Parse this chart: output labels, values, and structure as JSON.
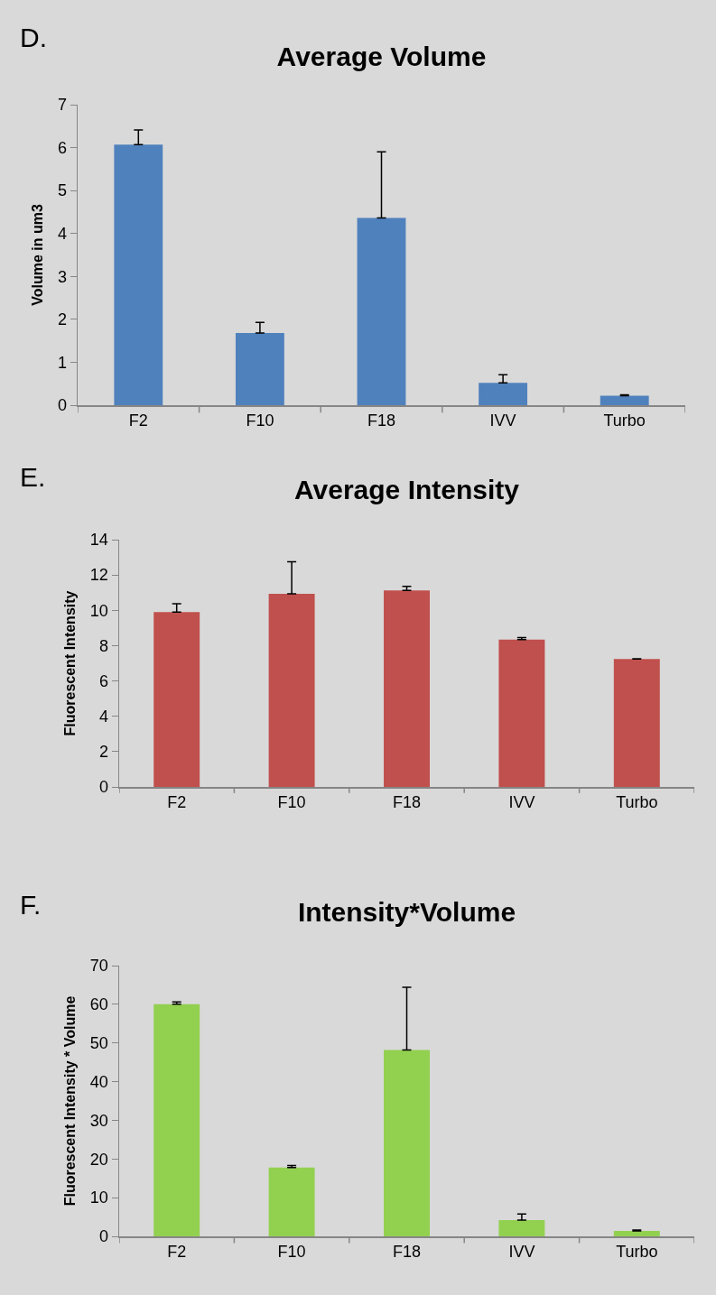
{
  "chart_data": [
    {
      "type": "bar",
      "title": "Average Volume",
      "ylabel": "Volume in um3",
      "annotations": [
        "D."
      ],
      "categories": [
        "F2",
        "F10",
        "F18",
        "IVV",
        "Turbo"
      ],
      "values": [
        6.07,
        1.68,
        4.36,
        0.52,
        0.22
      ],
      "color": "#4f81bd",
      "errors": [
        [
          6.07,
          6.41
        ],
        [
          1.68,
          1.93
        ],
        [
          4.36,
          5.9
        ],
        [
          0.52,
          0.71
        ],
        [
          0.22,
          0.24
        ]
      ],
      "ylim": [
        0,
        7
      ],
      "yticks": [
        0,
        1,
        2,
        3,
        4,
        5,
        6,
        7
      ],
      "grid": false,
      "legend": false
    },
    {
      "type": "bar",
      "title": "Average Intensity",
      "ylabel": "Fluorescent Intensity",
      "annotations": [
        "E."
      ],
      "categories": [
        "F2",
        "F10",
        "F18",
        "IVV",
        "Turbo"
      ],
      "values": [
        9.9,
        10.94,
        11.12,
        8.34,
        7.24
      ],
      "color": "#c0504d",
      "errors": [
        [
          9.9,
          10.37
        ],
        [
          10.94,
          12.75
        ],
        [
          11.12,
          11.36
        ],
        [
          8.34,
          8.46
        ],
        [
          7.24,
          7.26
        ]
      ],
      "ylim": [
        0,
        14
      ],
      "yticks": [
        0,
        2,
        4,
        6,
        8,
        10,
        12,
        14
      ],
      "grid": false,
      "legend": false
    },
    {
      "type": "bar",
      "title": "Intensity*Volume",
      "ylabel": "Fluorescent Intensity * Volume",
      "annotations": [
        "F."
      ],
      "categories": [
        "F2",
        "F10",
        "F18",
        "IVV",
        "Turbo"
      ],
      "values": [
        60,
        17.8,
        48.2,
        4.2,
        1.4
      ],
      "color": "#92d050",
      "errors": [
        [
          60,
          60.6
        ],
        [
          17.8,
          18.3
        ],
        [
          48.2,
          64.4
        ],
        [
          4.2,
          5.8
        ],
        [
          1.4,
          1.65
        ]
      ],
      "ylim": [
        0,
        70
      ],
      "yticks": [
        0,
        10,
        20,
        30,
        40,
        50,
        60,
        70
      ],
      "grid": false,
      "legend": false
    }
  ]
}
